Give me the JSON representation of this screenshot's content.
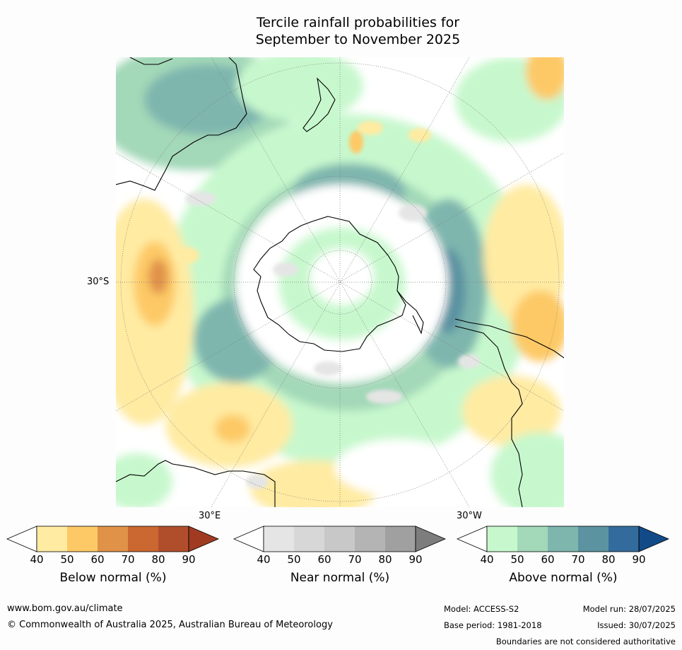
{
  "title_line1": "Tercile rainfall probabilities for",
  "title_line2": "September to November 2025",
  "map": {
    "lat_label": "30°S",
    "lon_label_east": "30°E",
    "lon_label_west": "30°W"
  },
  "colorbars": [
    {
      "label": "Below normal (%)",
      "ticks": [
        "40",
        "50",
        "60",
        "70",
        "80",
        "90"
      ],
      "colors": [
        "#ffffff",
        "#ffeba2",
        "#fdc966",
        "#e09248",
        "#cb6731",
        "#b04e2c",
        "#a03b22"
      ]
    },
    {
      "label": "Near normal (%)",
      "ticks": [
        "40",
        "50",
        "60",
        "70",
        "80",
        "90"
      ],
      "colors": [
        "#ffffff",
        "#e5e5e5",
        "#d7d7d7",
        "#c8c8c8",
        "#b4b4b4",
        "#a0a0a0",
        "#7d7d7d"
      ]
    },
    {
      "label": "Above normal (%)",
      "ticks": [
        "40",
        "50",
        "60",
        "70",
        "80",
        "90"
      ],
      "colors": [
        "#ffffff",
        "#c7f8cd",
        "#a3d8b8",
        "#7eb6ae",
        "#5b93a1",
        "#336c9c",
        "#124a87"
      ]
    }
  ],
  "footer": {
    "url": "www.bom.gov.au/climate",
    "copyright": "© Commonwealth of Australia 2025, Australian Bureau of Meteorology",
    "model": "Model: ACCESS-S2",
    "base_period": "Base period: 1981-2018",
    "model_run": "Model run: 28/07/2025",
    "issued": "Issued: 30/07/2025",
    "disclaimer": "Boundaries are not considered authoritative"
  }
}
